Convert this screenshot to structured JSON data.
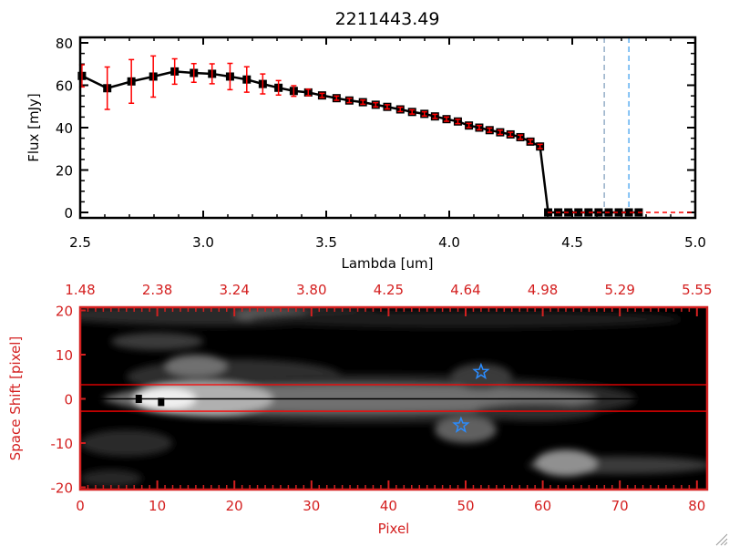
{
  "chart_data": [
    {
      "type": "line",
      "title": "2211443.49",
      "xlabel": "Lambda [um]",
      "ylabel": "Flux [mJy]",
      "xlim": [
        2.5,
        5.0
      ],
      "ylim": [
        -3,
        83
      ],
      "xticks": [
        "2.5",
        "3.0",
        "3.5",
        "4.0",
        "4.5",
        "5.0"
      ],
      "xtick_values": [
        2.5,
        3.0,
        3.5,
        4.0,
        4.5,
        5.0
      ],
      "yticks": [
        "0",
        "20",
        "40",
        "60",
        "80"
      ],
      "ytick_values": [
        0,
        20,
        40,
        60,
        80
      ],
      "grid": false,
      "series": [
        {
          "x": [
            2.507,
            2.61,
            2.708,
            2.797,
            2.884,
            2.962,
            3.036,
            3.109,
            3.177,
            3.242,
            3.306,
            3.368,
            3.427,
            3.483,
            3.542,
            3.594,
            3.649,
            3.701,
            3.748,
            3.801,
            3.849,
            3.899,
            3.942,
            3.989,
            4.035,
            4.08,
            4.122,
            4.164,
            4.207,
            4.249,
            4.289,
            4.33,
            4.369,
            4.402,
            4.443,
            4.484,
            4.525,
            4.566,
            4.607,
            4.648,
            4.689,
            4.73,
            4.77
          ],
          "y": [
            64.4,
            58.6,
            61.8,
            64.1,
            66.5,
            65.8,
            65.4,
            64.1,
            62.7,
            60.6,
            58.8,
            57.3,
            56.6,
            55.2,
            53.9,
            52.8,
            52.0,
            50.8,
            49.8,
            48.6,
            47.4,
            46.5,
            45.3,
            44.0,
            42.9,
            41.0,
            40.0,
            38.8,
            37.8,
            36.8,
            35.5,
            33.4,
            31.1,
            0,
            0,
            0,
            0,
            0,
            0,
            0,
            0,
            0,
            0
          ],
          "yerr": [
            5.2,
            10,
            10.3,
            9.7,
            6,
            4.4,
            4.7,
            6.2,
            6,
            4.7,
            3.4,
            2.5,
            1.5,
            1,
            1,
            1,
            1,
            1,
            1,
            1,
            1,
            1,
            1,
            1,
            1,
            1,
            1,
            1,
            1,
            1,
            1,
            1,
            1,
            0,
            0,
            0,
            0,
            0,
            0,
            0,
            0,
            0,
            0
          ],
          "marker": "square",
          "color": "#000000",
          "errcolor": "#ff0000"
        }
      ],
      "vlines": [
        {
          "x": 4.63,
          "color": "#7a9ab8",
          "style": "dashed"
        },
        {
          "x": 4.73,
          "color": "#3399ee",
          "style": "dashed"
        }
      ],
      "hlines": [
        {
          "y": 0,
          "from": 4.4,
          "to": 5.0,
          "color": "#ff0000",
          "style": "dashed"
        }
      ]
    },
    {
      "type": "heatmap",
      "xlabel": "Pixel",
      "ylabel": "Space Shift [pixel]",
      "xlim": [
        0,
        81.3
      ],
      "ylim": [
        -20.5,
        20.7
      ],
      "xticks": [
        "0",
        "10",
        "20",
        "30",
        "40",
        "50",
        "60",
        "70",
        "80"
      ],
      "xtick_values": [
        0,
        10,
        20,
        30,
        40,
        50,
        60,
        70,
        80
      ],
      "top_xticks": [
        "1.48",
        "2.38",
        "3.24",
        "3.80",
        "4.25",
        "4.64",
        "4.98",
        "5.29",
        "5.55"
      ],
      "yticks": [
        "20",
        "10",
        "0",
        "-10",
        "-20"
      ],
      "ytick_values": [
        20,
        10,
        0,
        -10,
        -20
      ],
      "axis_color": "#d42020",
      "colormap": "grayscale",
      "hlines": [
        {
          "y": 3.2,
          "color": "#ff0000"
        },
        {
          "y": -2.8,
          "color": "#ff0000"
        },
        {
          "y": 0,
          "color": "#000000"
        }
      ],
      "stars": [
        {
          "x": 52,
          "y": 6.1,
          "color": "#2a8cff"
        },
        {
          "x": 49.4,
          "y": -6,
          "color": "#2a8cff"
        }
      ],
      "squares": [
        {
          "x": 7.6,
          "y": 0
        },
        {
          "x": 10.5,
          "y": -0.7
        }
      ]
    }
  ]
}
